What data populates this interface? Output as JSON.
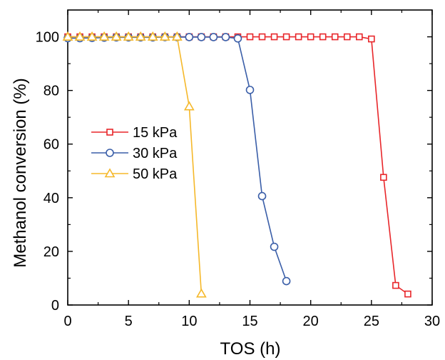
{
  "chart_data": {
    "type": "line",
    "xlabel": "TOS (h)",
    "ylabel": "Methanol conversion (%)",
    "xlim": [
      0,
      30
    ],
    "ylim": [
      0,
      110
    ],
    "x_ticks": [
      0,
      5,
      10,
      15,
      20,
      25,
      30
    ],
    "y_ticks": [
      0,
      20,
      40,
      60,
      80,
      100
    ],
    "grid": false,
    "legend_position": "center-left",
    "series": [
      {
        "name": "15 kPa",
        "color": "#e8262a",
        "marker": "square",
        "x": [
          0,
          1,
          2,
          3,
          4,
          5,
          6,
          7,
          8,
          9,
          10,
          11,
          12,
          13,
          14,
          15,
          16,
          17,
          18,
          19,
          20,
          21,
          22,
          23,
          24,
          25,
          26,
          27,
          28
        ],
        "y": [
          100,
          100,
          100,
          100,
          100,
          100,
          100,
          100,
          100,
          100,
          100,
          100,
          100,
          100,
          100,
          100,
          100,
          100,
          100,
          100,
          100,
          100,
          100,
          100,
          100,
          99.2,
          47.6,
          7.3,
          4.1
        ]
      },
      {
        "name": "30 kPa",
        "color": "#3a5ea8",
        "marker": "circle",
        "x": [
          0,
          1,
          2,
          3,
          4,
          5,
          6,
          7,
          8,
          9,
          10,
          11,
          12,
          13,
          14,
          15,
          16,
          17,
          18
        ],
        "y": [
          99.5,
          99.5,
          99.6,
          99.7,
          99.8,
          99.8,
          99.8,
          99.8,
          99.9,
          99.9,
          99.9,
          99.9,
          99.9,
          99.9,
          99.4,
          80.2,
          40.6,
          21.7,
          8.9
        ]
      },
      {
        "name": "50 kPa",
        "color": "#f5b82a",
        "marker": "triangle",
        "x": [
          0,
          1,
          2,
          3,
          4,
          5,
          6,
          7,
          8,
          9,
          10,
          11
        ],
        "y": [
          100,
          100,
          100,
          100,
          100,
          100,
          100,
          100,
          100,
          100,
          74.0,
          4.2
        ]
      }
    ]
  }
}
